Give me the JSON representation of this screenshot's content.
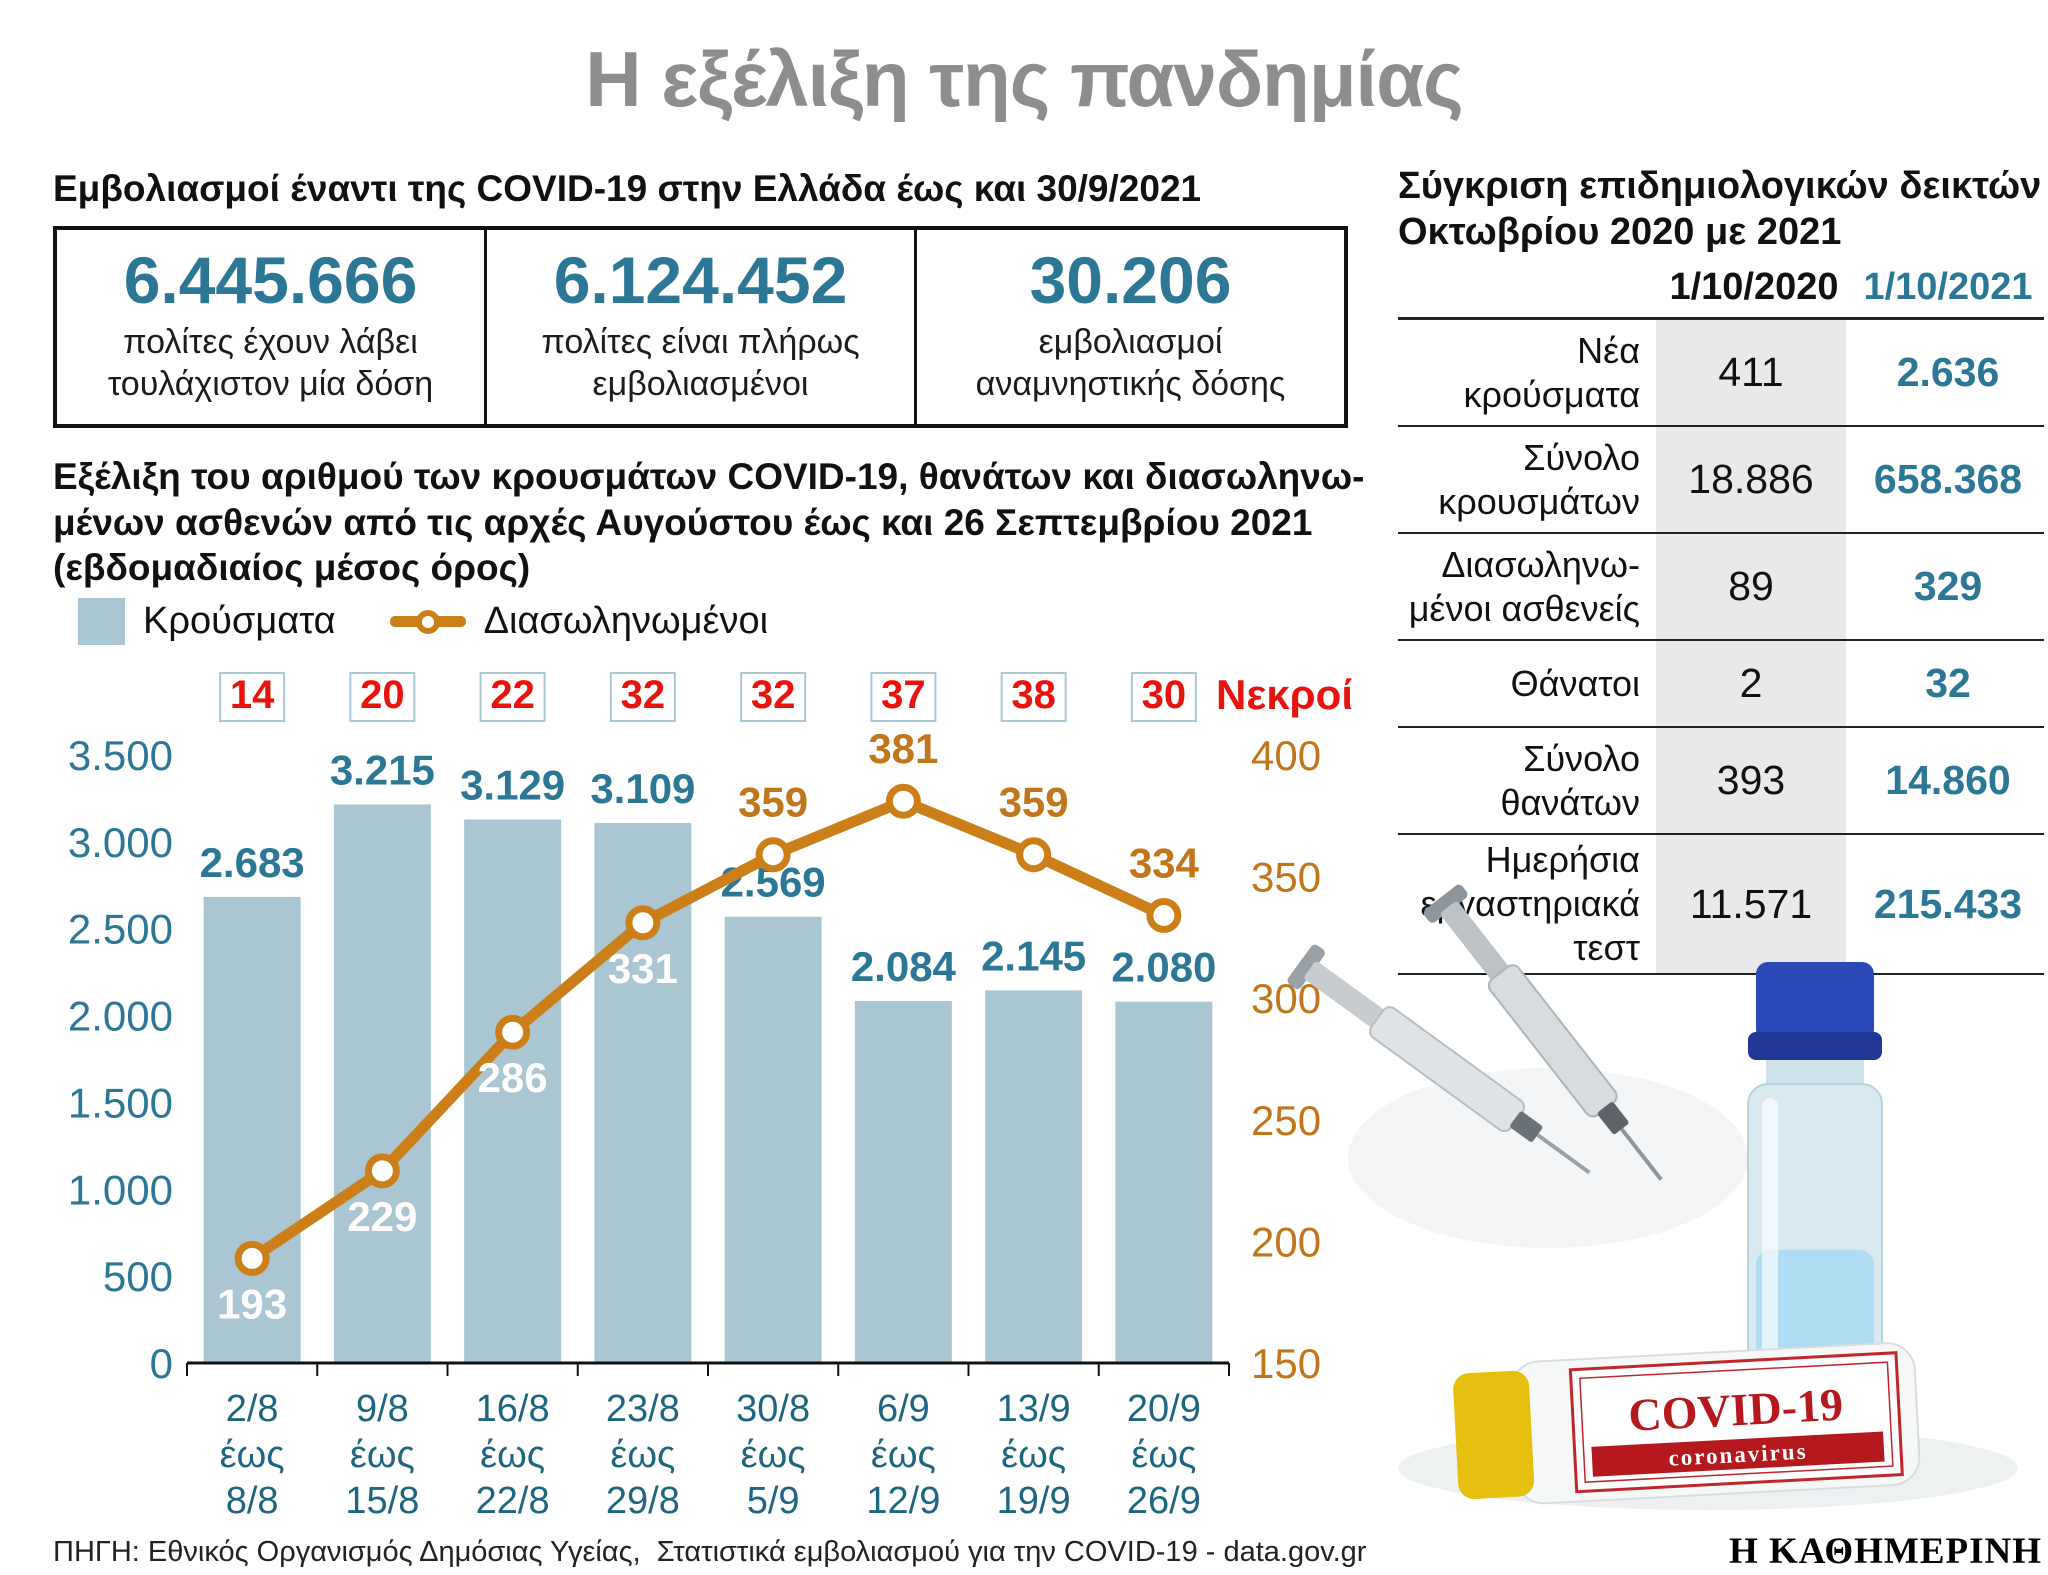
{
  "title": "Η εξέλιξη της πανδημίας",
  "vaccination": {
    "heading": "Εμβολιασμοί έναντι της COVID-19 στην Ελλάδα έως και 30/9/2021",
    "stats": [
      {
        "value": "6.445.666",
        "label": [
          "πολίτες έχουν λάβει",
          "τουλάχιστον μία δόση"
        ]
      },
      {
        "value": "6.124.452",
        "label": [
          "πολίτες είναι πλήρως",
          "εμβολιασμένοι"
        ]
      },
      {
        "value": "30.206",
        "label": [
          "εμβολιασμοί",
          "αναμνηστικής δόσης"
        ]
      }
    ]
  },
  "chart_section": {
    "heading": [
      "Εξέλιξη του αριθμού των κρουσμάτων COVID-19, θανάτων και διασωληνω-",
      "μένων ασθενών από τις αρχές Αυγούστου έως και 26 Σεπτεμβρίου 2021",
      "(εβδομαδιαίος μέσος όρος)"
    ]
  },
  "chart_data": {
    "type": "bar",
    "categories": [
      [
        "2/8",
        "έως",
        "8/8"
      ],
      [
        "9/8",
        "έως",
        "15/8"
      ],
      [
        "16/8",
        "έως",
        "22/8"
      ],
      [
        "23/8",
        "έως",
        "29/8"
      ],
      [
        "30/8",
        "έως",
        "5/9"
      ],
      [
        "6/9",
        "έως",
        "12/9"
      ],
      [
        "13/9",
        "έως",
        "19/9"
      ],
      [
        "20/9",
        "έως",
        "26/9"
      ]
    ],
    "series": [
      {
        "name": "Κρούσματα",
        "type": "bar",
        "axis": "left",
        "color": "#a9c6d2",
        "values": [
          2683,
          3215,
          3129,
          3109,
          2569,
          2084,
          2145,
          2080
        ],
        "labels": [
          "2.683",
          "3.215",
          "3.129",
          "3.109",
          "2.569",
          "2.084",
          "2.145",
          "2.080"
        ]
      },
      {
        "name": "Διασωληνωμένοι",
        "type": "line",
        "axis": "right",
        "color": "#cc7f18",
        "values": [
          193,
          229,
          286,
          331,
          359,
          381,
          359,
          334
        ],
        "labels": [
          "193",
          "229",
          "286",
          "331",
          "359",
          "381",
          "359",
          "334"
        ],
        "label_below": [
          true,
          true,
          true,
          true,
          false,
          false,
          false,
          false
        ]
      },
      {
        "name": "Νεκροί",
        "type": "boxed-values",
        "color": "#e8130c",
        "values": [
          14,
          20,
          22,
          32,
          32,
          37,
          38,
          30
        ]
      }
    ],
    "left_axis": {
      "min": 0,
      "max": 3500,
      "step": 500,
      "tick_labels": [
        "3.500",
        "3.000",
        "2.500",
        "2.000",
        "1.500",
        "1.000",
        "500",
        "0"
      ]
    },
    "right_axis": {
      "min": 150,
      "max": 400,
      "step": 50,
      "tick_labels": [
        "400",
        "350",
        "300",
        "250",
        "200",
        "150"
      ]
    },
    "grid": false,
    "legend_position": "top-left"
  },
  "comparison_table": {
    "title": [
      "Σύγκριση επιδημιολογικών δεικτών",
      "Οκτωβρίου 2020 με 2021"
    ],
    "columns": [
      "1/10/2020",
      "1/10/2021"
    ],
    "rows": [
      {
        "label": [
          "Νέα",
          "κρούσματα"
        ],
        "y2020": "411",
        "y2021": "2.636"
      },
      {
        "label": [
          "Σύνολο",
          "κρουσμάτων"
        ],
        "y2020": "18.886",
        "y2021": "658.368"
      },
      {
        "label": [
          "Διασωληνω-",
          "μένοι ασθενείς"
        ],
        "y2020": "89",
        "y2021": "329"
      },
      {
        "label": [
          "Θάνατοι"
        ],
        "y2020": "2",
        "y2021": "32"
      },
      {
        "label": [
          "Σύνολο",
          "θανάτων"
        ],
        "y2020": "393",
        "y2021": "14.860"
      },
      {
        "label": [
          "Ημερήσια",
          "εργαστηριακά",
          "τεστ"
        ],
        "y2020": "11.571",
        "y2021": "215.433"
      }
    ]
  },
  "photo": {
    "vial_label_title": "COVID-19",
    "vial_label_subtitle": "coronavirus"
  },
  "footer": {
    "source": "ΠΗΓΗ: Εθνικός Οργανισμός Δημόσιας Υγείας,  Στατιστικά εμβολιασμού για την COVID-19 - data.gov.gr",
    "logo": "Η ΚΑΘΗΜΕΡΙΝΗ"
  },
  "colors": {
    "teal": "#2b7795",
    "orange_line": "#cc7f18",
    "orange_text": "#c1761b",
    "red": "#e8130c",
    "bar_fill": "#a9c6d2",
    "title_gray": "#8d8d8d",
    "table_cell_gray": "#e9e9e9",
    "deaths_box_border": "#abc8d5"
  }
}
